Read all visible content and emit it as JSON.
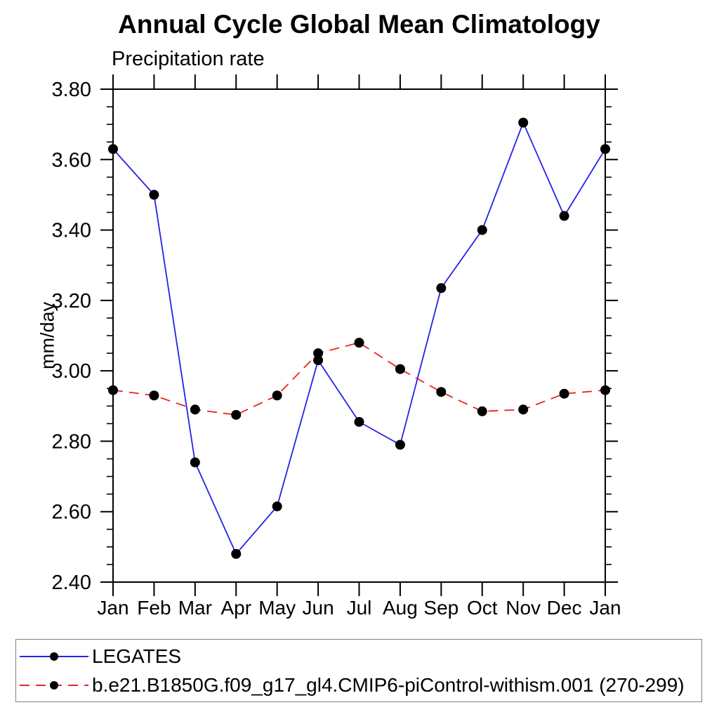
{
  "title": "Annual Cycle Global Mean Climatology",
  "chart_data": {
    "type": "line",
    "title": "Annual Cycle Global Mean Climatology",
    "subtitle": "Precipitation rate",
    "ylabel": "mm/day",
    "xlabel": "",
    "x_categories": [
      "Jan",
      "Feb",
      "Mar",
      "Apr",
      "May",
      "Jun",
      "Jul",
      "Aug",
      "Sep",
      "Oct",
      "Nov",
      "Dec",
      "Jan"
    ],
    "ylim": [
      2.4,
      3.8
    ],
    "y_major_step": 0.2,
    "y_minor_step": 0.05,
    "y_tick_labels": [
      "2.40",
      "2.60",
      "2.80",
      "3.00",
      "3.20",
      "3.40",
      "3.60",
      "3.80"
    ],
    "grid": false,
    "legend_position": "bottom",
    "marker": "filled-circle",
    "marker_color": "#000000",
    "series": [
      {
        "name": "LEGATES",
        "color": "#2323e8",
        "dash": "",
        "values": [
          3.63,
          3.5,
          2.74,
          2.48,
          2.615,
          3.03,
          2.855,
          2.79,
          3.235,
          3.4,
          3.705,
          3.44,
          3.63
        ]
      },
      {
        "name": "b.e21.B1850G.f09_g17_gl4.CMIP6-piControl-withism.001 (270-299)",
        "color": "#ee2222",
        "dash": "14 9",
        "values": [
          2.945,
          2.93,
          2.89,
          2.875,
          2.93,
          3.05,
          3.08,
          3.005,
          2.94,
          2.885,
          2.89,
          2.935,
          2.945
        ]
      }
    ]
  }
}
